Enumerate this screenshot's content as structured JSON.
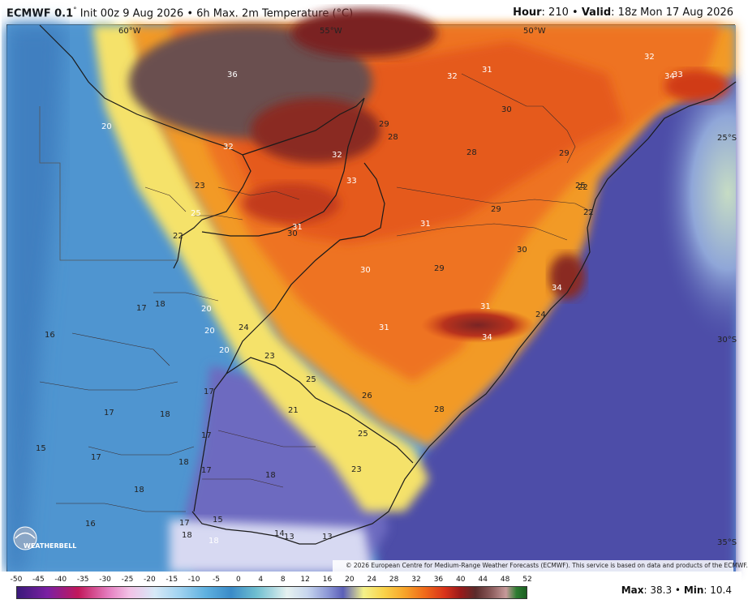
{
  "header": {
    "model": "ECMWF 0.1",
    "model_suffix": "°",
    "init_text": "Init 00z 9 Aug 2026",
    "product": "6h Max. 2m Temperature (°C)",
    "hour_label": "Hour",
    "hour_value": ": 210",
    "valid_label": "Valid",
    "valid_value": ": 18z Mon 17 Aug 2026"
  },
  "map": {
    "lon_labels": [
      "60°W",
      "55°W",
      "50°W"
    ],
    "lat_labels": [
      "25°S",
      "30°S",
      "35°S"
    ],
    "temperature_labels": [
      {
        "value": "36",
        "color": "white"
      },
      {
        "value": "20",
        "color": "white"
      },
      {
        "value": "32",
        "color": "white"
      },
      {
        "value": "31",
        "color": "white"
      },
      {
        "value": "32",
        "color": "white"
      },
      {
        "value": "34",
        "color": "white"
      },
      {
        "value": "33",
        "color": "white"
      },
      {
        "value": "33",
        "color": "white"
      },
      {
        "value": "30",
        "color": "dark"
      },
      {
        "value": "29",
        "color": "dark"
      },
      {
        "value": "28",
        "color": "dark"
      },
      {
        "value": "32",
        "color": "white"
      },
      {
        "value": "32",
        "color": "white"
      },
      {
        "value": "28",
        "color": "dark"
      },
      {
        "value": "29",
        "color": "dark"
      },
      {
        "value": "25",
        "color": "white"
      },
      {
        "value": "23",
        "color": "dark"
      },
      {
        "value": "25",
        "color": "dark"
      },
      {
        "value": "22",
        "color": "dark"
      },
      {
        "value": "31",
        "color": "white"
      },
      {
        "value": "30",
        "color": "dark"
      },
      {
        "value": "31",
        "color": "white"
      },
      {
        "value": "29",
        "color": "dark"
      },
      {
        "value": "22",
        "color": "dark"
      },
      {
        "value": "22",
        "color": "dark"
      },
      {
        "value": "30",
        "color": "white"
      },
      {
        "value": "29",
        "color": "dark"
      },
      {
        "value": "30",
        "color": "dark"
      },
      {
        "value": "34",
        "color": "white"
      },
      {
        "value": "24",
        "color": "dark"
      },
      {
        "value": "31",
        "color": "white"
      },
      {
        "value": "34",
        "color": "white"
      },
      {
        "value": "31",
        "color": "white"
      },
      {
        "value": "17",
        "color": "dark"
      },
      {
        "value": "18",
        "color": "dark"
      },
      {
        "value": "20",
        "color": "white"
      },
      {
        "value": "20",
        "color": "white"
      },
      {
        "value": "24",
        "color": "dark"
      },
      {
        "value": "20",
        "color": "white"
      },
      {
        "value": "16",
        "color": "dark"
      },
      {
        "value": "23",
        "color": "dark"
      },
      {
        "value": "25",
        "color": "dark"
      },
      {
        "value": "26",
        "color": "dark"
      },
      {
        "value": "28",
        "color": "dark"
      },
      {
        "value": "17",
        "color": "dark"
      },
      {
        "value": "17",
        "color": "dark"
      },
      {
        "value": "18",
        "color": "dark"
      },
      {
        "value": "21",
        "color": "dark"
      },
      {
        "value": "17",
        "color": "dark"
      },
      {
        "value": "25",
        "color": "dark"
      },
      {
        "value": "15",
        "color": "dark"
      },
      {
        "value": "17",
        "color": "dark"
      },
      {
        "value": "18",
        "color": "dark"
      },
      {
        "value": "17",
        "color": "dark"
      },
      {
        "value": "18",
        "color": "dark"
      },
      {
        "value": "23",
        "color": "dark"
      },
      {
        "value": "18",
        "color": "dark"
      },
      {
        "value": "16",
        "color": "dark"
      },
      {
        "value": "17",
        "color": "dark"
      },
      {
        "value": "15",
        "color": "dark"
      },
      {
        "value": "18",
        "color": "dark"
      },
      {
        "value": "18",
        "color": "white"
      },
      {
        "value": "14",
        "color": "dark"
      },
      {
        "value": "13",
        "color": "dark"
      },
      {
        "value": "13",
        "color": "dark"
      }
    ],
    "logo_text": "WEATHERBELL",
    "credit": "© 2026 European Centre for Medium-Range Weather Forecasts (ECMWF). This service is based on data and products of the ECMWF."
  },
  "legend": {
    "ticks": [
      "-50",
      "-45",
      "-40",
      "-35",
      "-30",
      "-25",
      "-20",
      "-15",
      "-10",
      "-5",
      "0",
      "4",
      "8",
      "12",
      "16",
      "20",
      "24",
      "28",
      "32",
      "36",
      "40",
      "44",
      "48",
      "52"
    ],
    "max_label": "Max",
    "max_value": ": 38.3",
    "min_label": "Min",
    "min_value": ": 10.4",
    "bullet": "•"
  },
  "colors": {
    "ocean_deep": "#4a4fa8",
    "ocean_blue": "#5fa3dc",
    "land_cool": "#5fa8dc",
    "land_mild": "#f5e77a",
    "land_warm": "#f39a22",
    "land_hot": "#e2551a",
    "land_very_hot": "#7a2a22",
    "land_extreme": "#6b5151",
    "border": "#1a1a1a"
  }
}
